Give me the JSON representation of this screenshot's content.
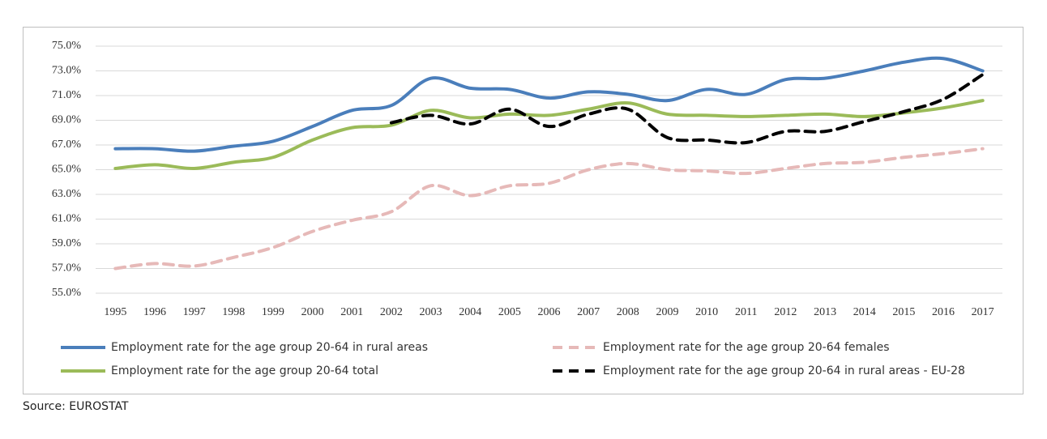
{
  "chart_data": {
    "type": "line",
    "categories": [
      "1995",
      "1996",
      "1997",
      "1998",
      "1999",
      "2000",
      "2001",
      "2002",
      "2003",
      "2004",
      "2005",
      "2006",
      "2007",
      "2008",
      "2009",
      "2010",
      "2011",
      "2012",
      "2013",
      "2014",
      "2015",
      "2016",
      "2017"
    ],
    "series": [
      {
        "name": "Employment rate for the age group 20-64 in rural areas",
        "color": "#4a7ebb",
        "style": "solid",
        "values": [
          66.7,
          66.7,
          66.5,
          66.9,
          67.3,
          68.5,
          69.8,
          70.2,
          72.4,
          71.6,
          71.5,
          70.8,
          71.3,
          71.1,
          70.6,
          71.5,
          71.1,
          72.3,
          72.4,
          73.0,
          73.7,
          74.0,
          73.0
        ]
      },
      {
        "name": "Employment rate for the age group 20-64 females",
        "color": "#e6b9b8",
        "style": "dashed",
        "values": [
          57.0,
          57.4,
          57.2,
          57.9,
          58.7,
          60.0,
          60.9,
          61.6,
          63.7,
          62.9,
          63.7,
          63.9,
          65.0,
          65.5,
          65.0,
          64.9,
          64.7,
          65.1,
          65.5,
          65.6,
          66.0,
          66.3,
          66.7
        ]
      },
      {
        "name": "Employment rate for the age group 20-64 total",
        "color": "#9bbb59",
        "style": "solid",
        "values": [
          65.1,
          65.4,
          65.1,
          65.6,
          66.0,
          67.4,
          68.4,
          68.6,
          69.8,
          69.2,
          69.5,
          69.4,
          69.9,
          70.4,
          69.5,
          69.4,
          69.3,
          69.4,
          69.5,
          69.3,
          69.6,
          70.0,
          70.6
        ]
      },
      {
        "name": "Employment rate for the age group 20-64 in rural areas - EU-28",
        "color": "#000000",
        "style": "dashed",
        "values": [
          null,
          null,
          null,
          null,
          null,
          null,
          null,
          68.8,
          69.4,
          68.7,
          69.9,
          68.5,
          69.5,
          69.9,
          67.6,
          67.4,
          67.2,
          68.1,
          68.1,
          68.9,
          69.7,
          70.7,
          72.7
        ]
      }
    ],
    "ylim": [
      55,
      75
    ],
    "yticks": [
      {
        "value": 55,
        "label": "55.0%"
      },
      {
        "value": 57,
        "label": "57.0%"
      },
      {
        "value": 59,
        "label": "59.0%"
      },
      {
        "value": 61,
        "label": "61.0%"
      },
      {
        "value": 63,
        "label": "63.0%"
      },
      {
        "value": 65,
        "label": "65.0%"
      },
      {
        "value": 67,
        "label": "67.0%"
      },
      {
        "value": 69,
        "label": "69.0%"
      },
      {
        "value": 71,
        "label": "71.0%"
      },
      {
        "value": 73,
        "label": "73.0%"
      },
      {
        "value": 75,
        "label": "75.0%"
      }
    ],
    "grid": true,
    "legend": "bottom",
    "source": "Source: EUROSTAT"
  }
}
